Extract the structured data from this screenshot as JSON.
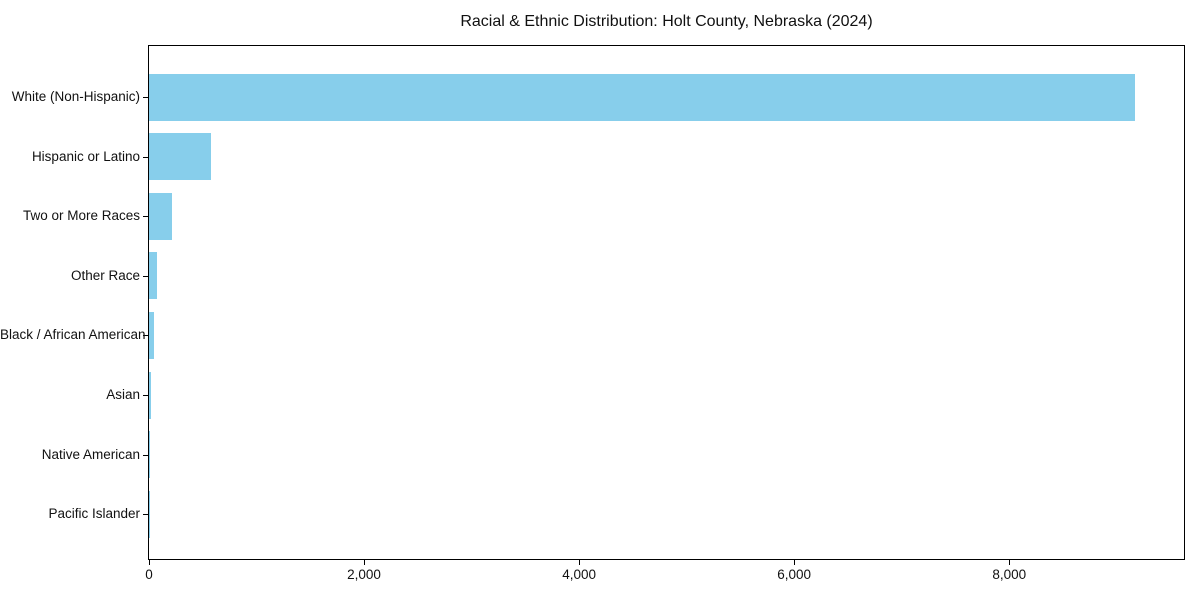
{
  "chart_data": {
    "type": "bar",
    "orientation": "horizontal",
    "title": "Racial & Ethnic Distribution: Holt County, Nebraska (2024)",
    "categories": [
      "White (Non-Hispanic)",
      "Hispanic or Latino",
      "Two or More Races",
      "Other Race",
      "Black / African American",
      "Asian",
      "Native American",
      "Pacific Islander"
    ],
    "values": [
      9170,
      578,
      212,
      71,
      48,
      16,
      12,
      3
    ],
    "xlabel": "",
    "ylabel": "",
    "xlim": [
      0,
      9625
    ],
    "xticks": [
      {
        "value": 0,
        "label": "0"
      },
      {
        "value": 2000,
        "label": "2,000"
      },
      {
        "value": 4000,
        "label": "4,000"
      },
      {
        "value": 6000,
        "label": "6,000"
      },
      {
        "value": 8000,
        "label": "8,000"
      }
    ],
    "bar_color": "#87CEEB",
    "axis_color": "#000000",
    "background": "#ffffff",
    "grid": false,
    "legend": null
  }
}
